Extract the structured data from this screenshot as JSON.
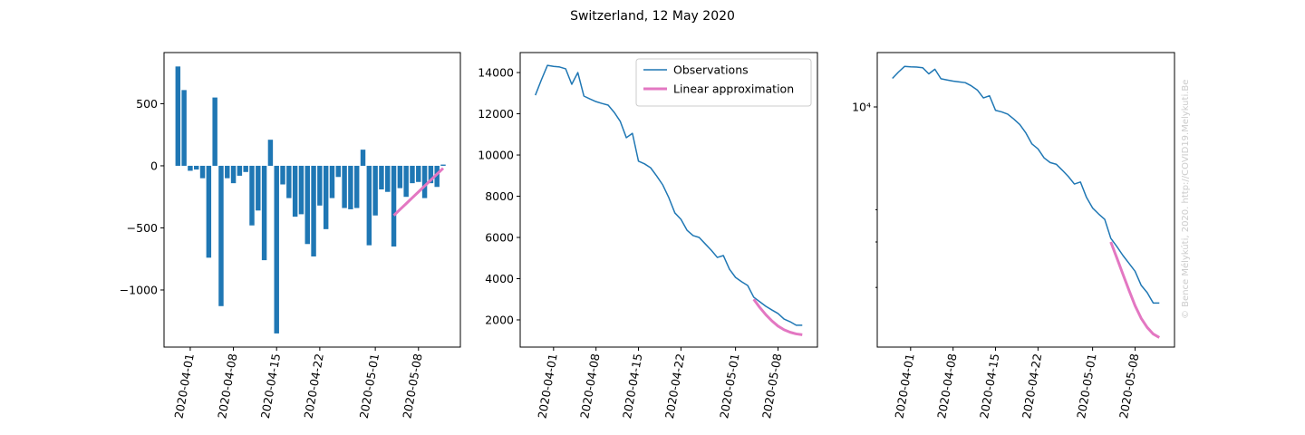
{
  "title": "Switzerland, 12 May 2020",
  "watermark": "© Bence Mélykúti, 2020. http://COVID19.Melykuti.Be",
  "chart_data": [
    {
      "type": "bar",
      "x": [
        "2020-03-30",
        "2020-03-31",
        "2020-04-01",
        "2020-04-02",
        "2020-04-03",
        "2020-04-04",
        "2020-04-05",
        "2020-04-06",
        "2020-04-07",
        "2020-04-08",
        "2020-04-09",
        "2020-04-10",
        "2020-04-11",
        "2020-04-12",
        "2020-04-13",
        "2020-04-14",
        "2020-04-15",
        "2020-04-16",
        "2020-04-17",
        "2020-04-18",
        "2020-04-19",
        "2020-04-20",
        "2020-04-21",
        "2020-04-22",
        "2020-04-23",
        "2020-04-24",
        "2020-04-25",
        "2020-04-26",
        "2020-04-27",
        "2020-04-28",
        "2020-04-29",
        "2020-04-30",
        "2020-05-01",
        "2020-05-02",
        "2020-05-03",
        "2020-05-04",
        "2020-05-05",
        "2020-05-06",
        "2020-05-07",
        "2020-05-08",
        "2020-05-09",
        "2020-05-10",
        "2020-05-11",
        "2020-05-12"
      ],
      "values": [
        800,
        610,
        -40,
        -30,
        -100,
        -740,
        550,
        -1130,
        -100,
        -140,
        -80,
        -50,
        -480,
        -360,
        -760,
        210,
        -1350,
        -150,
        -260,
        -410,
        -390,
        -630,
        -730,
        -320,
        -510,
        -260,
        -90,
        -340,
        -350,
        -340,
        130,
        -640,
        -400,
        -190,
        -210,
        -650,
        -180,
        -250,
        -140,
        -130,
        -260,
        -140,
        -170,
        10
      ],
      "color": "#1f77b4",
      "overlay": {
        "x": [
          "2020-05-04",
          "2020-05-05",
          "2020-05-06",
          "2020-05-07",
          "2020-05-08",
          "2020-05-09",
          "2020-05-10",
          "2020-05-11",
          "2020-05-12"
        ],
        "values": [
          -400,
          -352,
          -305,
          -257,
          -210,
          -162,
          -115,
          -67,
          -20
        ],
        "color": "#e377c2"
      },
      "xlim": [
        "2020-03-27T18:00:00Z",
        "2020-05-14T19:00:00Z"
      ],
      "xticks": [
        "2020-04-01",
        "2020-04-08",
        "2020-04-15",
        "2020-04-22",
        "2020-05-01",
        "2020-05-08"
      ],
      "ylim": [
        -1460,
        912
      ],
      "yticks": [
        {
          "value": -1000,
          "label": "−1000"
        },
        {
          "value": -500,
          "label": "−500"
        },
        0,
        500
      ]
    },
    {
      "type": "line",
      "series": [
        {
          "name": "Observations",
          "color": "#1f77b4",
          "x": [
            "2020-03-29",
            "2020-03-30",
            "2020-03-31",
            "2020-04-01",
            "2020-04-02",
            "2020-04-03",
            "2020-04-04",
            "2020-04-05",
            "2020-04-06",
            "2020-04-07",
            "2020-04-08",
            "2020-04-09",
            "2020-04-10",
            "2020-04-11",
            "2020-04-12",
            "2020-04-13",
            "2020-04-14",
            "2020-04-15",
            "2020-04-16",
            "2020-04-17",
            "2020-04-18",
            "2020-04-19",
            "2020-04-20",
            "2020-04-21",
            "2020-04-22",
            "2020-04-23",
            "2020-04-24",
            "2020-04-25",
            "2020-04-26",
            "2020-04-27",
            "2020-04-28",
            "2020-04-29",
            "2020-04-30",
            "2020-05-01",
            "2020-05-02",
            "2020-05-03",
            "2020-05-04",
            "2020-05-05",
            "2020-05-06",
            "2020-05-07",
            "2020-05-08",
            "2020-05-09",
            "2020-05-10",
            "2020-05-11",
            "2020-05-12"
          ],
          "values": [
            12900,
            13650,
            14350,
            14300,
            14270,
            14180,
            13430,
            14000,
            12860,
            12720,
            12590,
            12500,
            12420,
            12070,
            11630,
            10840,
            11050,
            9700,
            9570,
            9380,
            8980,
            8550,
            7930,
            7190,
            6880,
            6350,
            6090,
            6000,
            5690,
            5380,
            5030,
            5120,
            4460,
            4060,
            3850,
            3670,
            3100,
            2880,
            2660,
            2480,
            2310,
            2040,
            1910,
            1740,
            1740
          ]
        },
        {
          "name": "Linear approximation",
          "color": "#e377c2",
          "x": [
            "2020-05-04",
            "2020-05-05",
            "2020-05-06",
            "2020-05-07",
            "2020-05-08",
            "2020-05-09",
            "2020-05-10",
            "2020-05-11",
            "2020-05-12"
          ],
          "values": [
            3000,
            2600,
            2250,
            1950,
            1700,
            1520,
            1400,
            1320,
            1280
          ]
        }
      ],
      "legend": "upper right",
      "xlim": [
        "2020-03-26T12:00:00Z",
        "2020-05-14T12:00:00Z"
      ],
      "xticks": [
        "2020-04-01",
        "2020-04-08",
        "2020-04-15",
        "2020-04-22",
        "2020-05-01",
        "2020-05-08"
      ],
      "ylim": [
        680,
        14970
      ],
      "yticks": [
        2000,
        4000,
        6000,
        8000,
        10000,
        12000,
        14000
      ]
    },
    {
      "type": "line",
      "log_y": true,
      "series": [
        {
          "color": "#1f77b4",
          "x": [
            "2020-03-29",
            "2020-03-30",
            "2020-03-31",
            "2020-04-01",
            "2020-04-02",
            "2020-04-03",
            "2020-04-04",
            "2020-04-05",
            "2020-04-06",
            "2020-04-07",
            "2020-04-08",
            "2020-04-09",
            "2020-04-10",
            "2020-04-11",
            "2020-04-12",
            "2020-04-13",
            "2020-04-14",
            "2020-04-15",
            "2020-04-16",
            "2020-04-17",
            "2020-04-18",
            "2020-04-19",
            "2020-04-20",
            "2020-04-21",
            "2020-04-22",
            "2020-04-23",
            "2020-04-24",
            "2020-04-25",
            "2020-04-26",
            "2020-04-27",
            "2020-04-28",
            "2020-04-29",
            "2020-04-30",
            "2020-05-01",
            "2020-05-02",
            "2020-05-03",
            "2020-05-04",
            "2020-05-05",
            "2020-05-06",
            "2020-05-07",
            "2020-05-08",
            "2020-05-09",
            "2020-05-10",
            "2020-05-11",
            "2020-05-12"
          ],
          "values": [
            12900,
            13650,
            14350,
            14300,
            14270,
            14180,
            13430,
            14000,
            12860,
            12720,
            12590,
            12500,
            12420,
            12070,
            11630,
            10840,
            11050,
            9700,
            9570,
            9380,
            8980,
            8550,
            7930,
            7190,
            6880,
            6350,
            6090,
            6000,
            5690,
            5380,
            5030,
            5120,
            4460,
            4060,
            3850,
            3670,
            3100,
            2880,
            2660,
            2480,
            2310,
            2040,
            1910,
            1740,
            1740
          ]
        },
        {
          "color": "#e377c2",
          "x": [
            "2020-05-04",
            "2020-05-05",
            "2020-05-06",
            "2020-05-07",
            "2020-05-08",
            "2020-05-09",
            "2020-05-10",
            "2020-05-11",
            "2020-05-12"
          ],
          "values": [
            3000,
            2600,
            2250,
            1950,
            1700,
            1520,
            1400,
            1320,
            1280
          ]
        }
      ],
      "xlim": [
        "2020-03-26T12:00:00Z",
        "2020-05-14T12:00:00Z"
      ],
      "xticks": [
        "2020-04-01",
        "2020-04-08",
        "2020-04-15",
        "2020-04-22",
        "2020-05-01",
        "2020-05-08"
      ],
      "ylim": [
        1175,
        16240
      ],
      "yticks": [
        {
          "value": 10000,
          "label": "10⁴"
        }
      ],
      "minor_yticks": [
        2000,
        3000,
        4000
      ]
    }
  ]
}
